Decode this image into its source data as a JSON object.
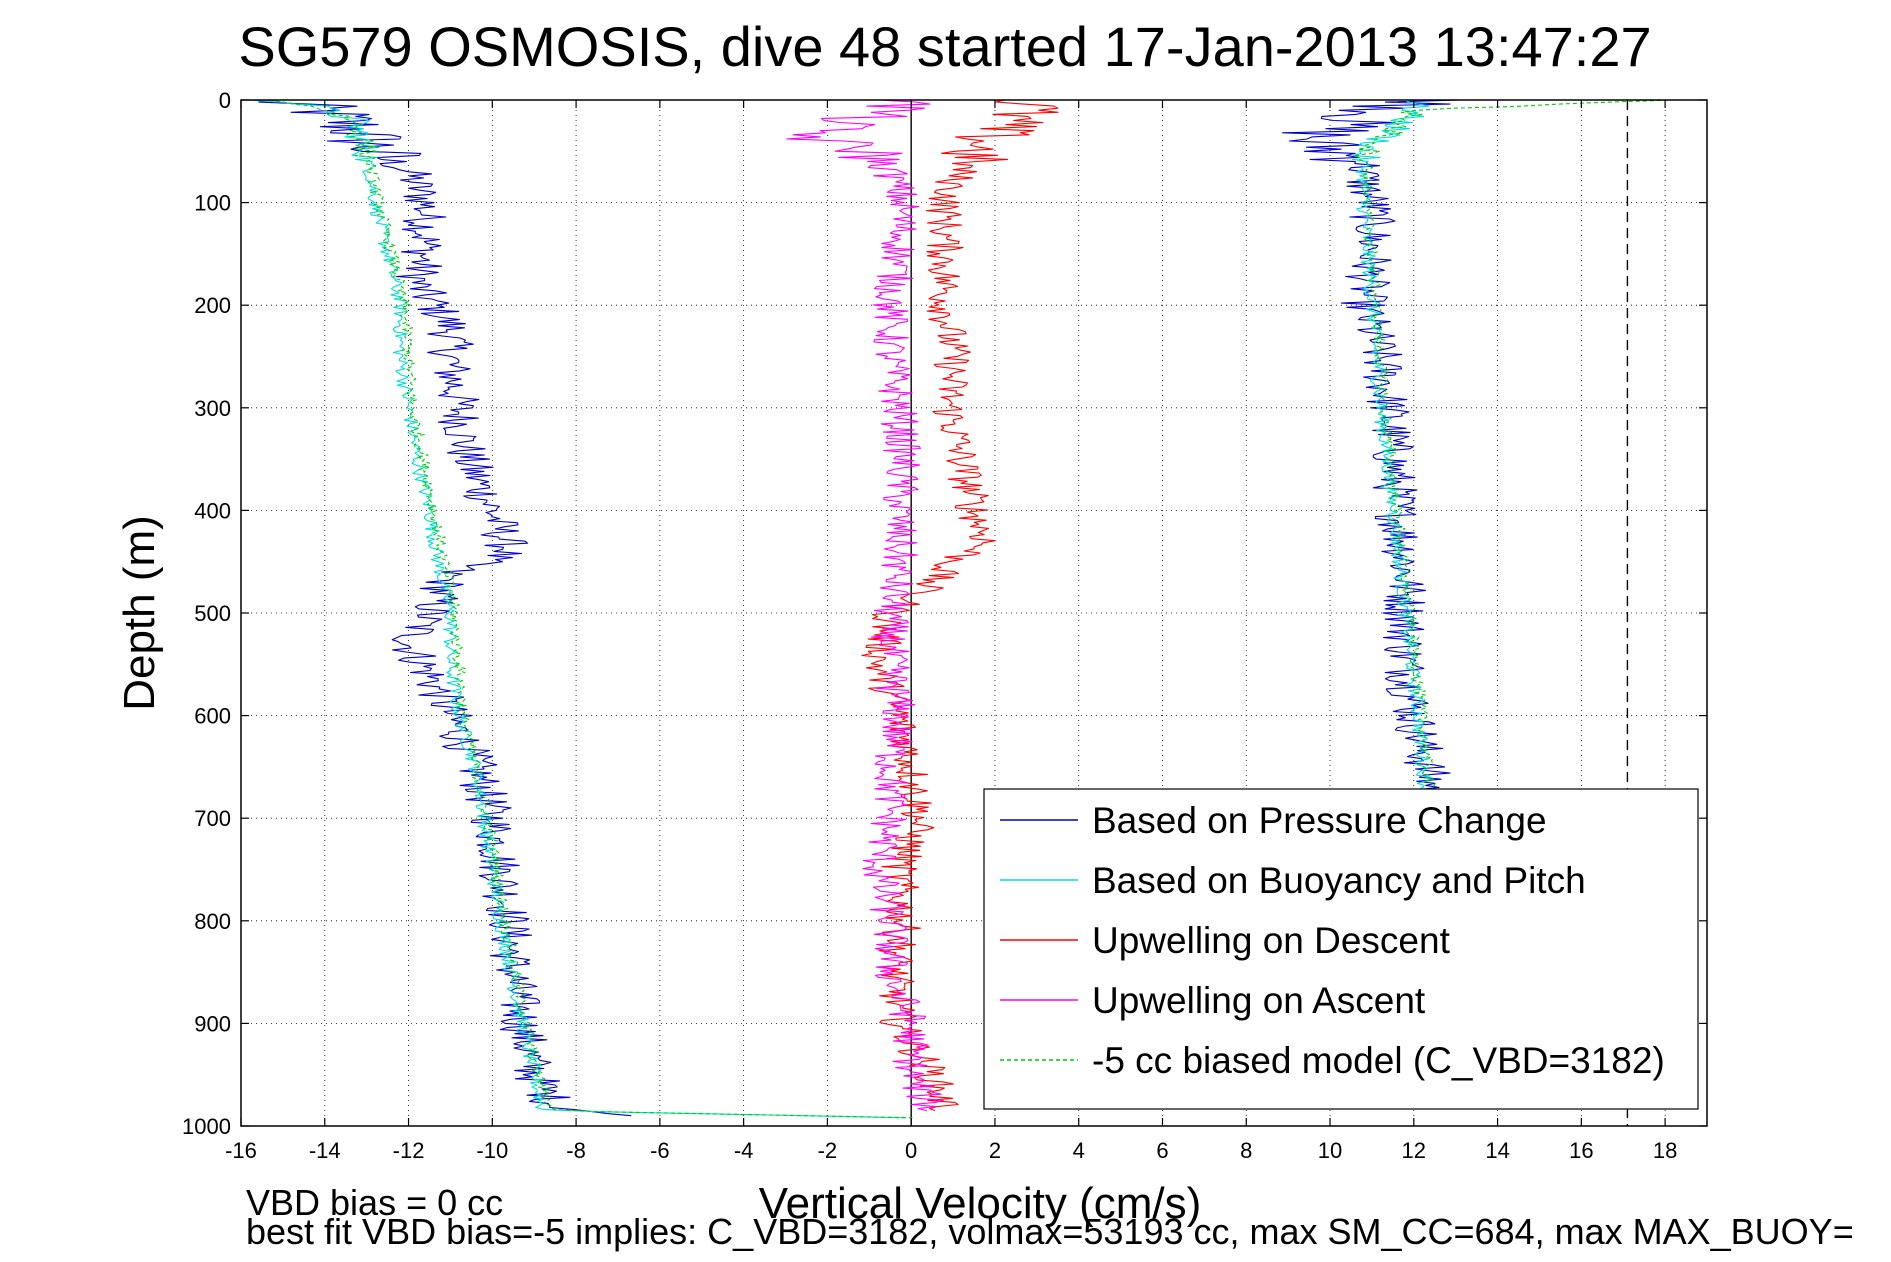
{
  "chart_data": {
    "type": "line",
    "title": "SG579 OSMOSIS, dive 48 started 17-Jan-2013 13:47:27",
    "xlabel": "Vertical Velocity (cm/s)",
    "ylabel": "Depth (m)",
    "xlim": [
      -16,
      19
    ],
    "ylim": [
      1000,
      0
    ],
    "y_reversed": true,
    "grid": true,
    "legend_position": "bottom-right",
    "xticks": [
      "-16",
      "-14",
      "-12",
      "-10",
      "-8",
      "-6",
      "-4",
      "-2",
      "0",
      "2",
      "4",
      "6",
      "8",
      "10",
      "12",
      "14",
      "16",
      "18"
    ],
    "yticks": [
      "0",
      "100",
      "200",
      "300",
      "400",
      "500",
      "600",
      "700",
      "800",
      "900",
      "1000"
    ],
    "reference_lines": [
      {
        "axis": "x",
        "value": 0,
        "style": "solid",
        "color": "#000000"
      },
      {
        "axis": "x",
        "value": 17.1,
        "style": "dashed",
        "color": "#000000"
      }
    ],
    "notes": [
      "VBD bias = 0 cc",
      "best fit VBD bias=-5 implies: C_VBD=3182, volmax=53193 cc, max SM_CC=684, max MAX_BUOY="
    ],
    "series": [
      {
        "name": "Based on Pressure Change",
        "color": "#0000cc",
        "style": "solid",
        "noise": 0.55,
        "profiles": [
          {
            "depth": [
              0,
              5,
              15,
              30,
              50,
              70,
              100,
              140,
              180,
              220,
              260,
              300,
              350,
              400,
              440,
              460,
              500,
              530,
              560,
              600,
              650,
              700,
              750,
              800,
              850,
              900,
              950,
              980,
              990
            ],
            "value": [
              -15.5,
              -14.5,
              -13.8,
              -13.2,
              -12.8,
              -12.0,
              -11.6,
              -11.6,
              -11.8,
              -11.0,
              -11.0,
              -10.8,
              -10.6,
              -10.0,
              -9.6,
              -11.0,
              -11.5,
              -12.0,
              -11.5,
              -11.0,
              -10.4,
              -10.0,
              -9.8,
              -9.6,
              -9.5,
              -9.3,
              -9.0,
              -8.5,
              -7.0
            ]
          },
          {
            "depth": [
              0,
              5,
              20,
              40,
              60,
              80,
              100,
              150,
              200,
              250,
              300,
              350,
              400,
              450,
              500,
              550,
              600,
              650,
              680
            ],
            "value": [
              13.0,
              11.8,
              10.5,
              9.5,
              10.8,
              10.8,
              11.0,
              11.0,
              10.8,
              11.2,
              11.4,
              11.5,
              11.6,
              11.8,
              11.8,
              11.8,
              12.0,
              12.3,
              12.5
            ]
          }
        ]
      },
      {
        "name": "Based on Buoyancy and Pitch",
        "color": "#00dddd",
        "style": "solid",
        "noise": 0.18,
        "profiles": [
          {
            "depth": [
              0,
              5,
              20,
              50,
              100,
              200,
              250,
              300,
              350,
              400,
              450,
              500,
              550,
              600,
              650,
              700,
              800,
              900,
              950,
              985,
              992
            ],
            "value": [
              -15.5,
              -14.3,
              -13.3,
              -13.0,
              -12.8,
              -12.2,
              -12.2,
              -12.0,
              -11.8,
              -11.5,
              -11.3,
              -11.0,
              -11.0,
              -10.8,
              -10.4,
              -10.2,
              -9.8,
              -9.3,
              -9.0,
              -8.8,
              0.0
            ]
          },
          {
            "depth": [
              0,
              10,
              30,
              50,
              100,
              200,
              300,
              400,
              500,
              600,
              680
            ],
            "value": [
              12.0,
              12.0,
              11.5,
              10.8,
              10.8,
              11.0,
              11.2,
              11.5,
              11.8,
              12.1,
              12.3
            ]
          }
        ]
      },
      {
        "name": "Upwelling on Descent",
        "color": "#ff0000",
        "style": "solid",
        "noise": 0.45,
        "profiles": [
          {
            "depth": [
              0,
              5,
              15,
              30,
              50,
              80,
              100,
              150,
              200,
              250,
              300,
              350,
              400,
              430,
              450,
              480,
              500,
              550,
              600,
              650,
              700,
              750,
              800,
              850,
              900,
              950,
              985
            ],
            "value": [
              2.5,
              3.0,
              2.5,
              2.0,
              1.5,
              1.0,
              0.8,
              0.8,
              0.8,
              1.0,
              0.9,
              1.2,
              1.5,
              1.8,
              1.0,
              0.2,
              -0.5,
              -0.8,
              -0.3,
              0.0,
              0.2,
              -0.3,
              -0.2,
              -0.4,
              -0.3,
              0.5,
              0.8
            ]
          }
        ]
      },
      {
        "name": "Upwelling on Ascent",
        "color": "#ff00ff",
        "style": "solid",
        "noise": 0.45,
        "profiles": [
          {
            "depth": [
              985,
              950,
              900,
              850,
              800,
              750,
              700,
              650,
              600,
              550,
              500,
              450,
              400,
              350,
              300,
              250,
              200,
              150,
              100,
              70,
              50,
              35,
              20,
              10,
              0
            ],
            "value": [
              0.5,
              0.0,
              0.0,
              -0.5,
              -0.5,
              -0.8,
              -0.5,
              -0.5,
              -0.3,
              -0.5,
              -0.5,
              -0.3,
              -0.3,
              -0.2,
              -0.3,
              -0.5,
              -0.5,
              -0.3,
              -0.2,
              -0.5,
              -1.0,
              -2.5,
              -1.5,
              -0.5,
              0.0
            ]
          }
        ]
      },
      {
        "name": "-5 cc biased model (C_VBD=3182)",
        "color": "#00cc00",
        "style": "dashed",
        "noise": 0.15,
        "profiles": [
          {
            "depth": [
              0,
              5,
              20,
              50,
              100,
              200,
              300,
              400,
              500,
              600,
              700,
              800,
              900,
              950,
              985,
              992
            ],
            "value": [
              -15.5,
              -14.3,
              -13.3,
              -13.0,
              -12.7,
              -12.1,
              -11.9,
              -11.4,
              -10.9,
              -10.7,
              -10.1,
              -9.7,
              -9.2,
              -8.9,
              -8.6,
              0.0
            ]
          },
          {
            "depth": [
              0,
              10,
              30,
              50,
              100,
              200,
              300,
              400,
              500,
              600,
              680
            ],
            "value": [
              18.0,
              12.0,
              11.5,
              10.9,
              10.9,
              11.1,
              11.3,
              11.6,
              11.9,
              12.2,
              12.4
            ]
          }
        ]
      }
    ]
  }
}
